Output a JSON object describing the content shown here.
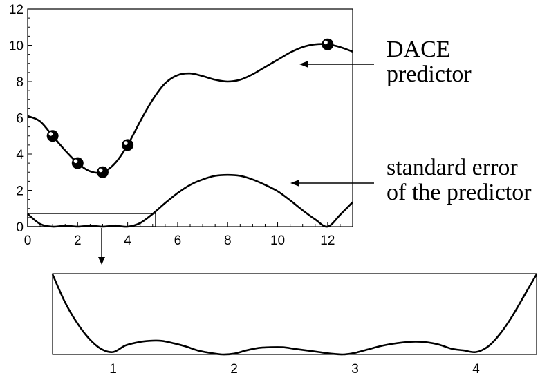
{
  "chart_data": [
    {
      "type": "line",
      "title": "",
      "xlabel": "",
      "ylabel": "",
      "xlim": [
        0,
        13
      ],
      "ylim": [
        0,
        12
      ],
      "xticks": [
        "0",
        "2",
        "4",
        "6",
        "8",
        "10",
        "12"
      ],
      "yticks": [
        "0",
        "2",
        "4",
        "6",
        "8",
        "10",
        "12"
      ],
      "grid": false,
      "series": [
        {
          "name": "DACE predictor",
          "x": [
            0,
            0.5,
            1,
            1.5,
            2,
            2.5,
            3,
            3.5,
            4,
            4.5,
            5,
            5.5,
            6,
            6.5,
            7,
            7.5,
            8,
            8.5,
            9,
            9.5,
            10,
            10.5,
            11,
            11.5,
            12,
            12.5,
            13
          ],
          "y": [
            6.1,
            5.8,
            5.0,
            4.2,
            3.5,
            3.05,
            3.0,
            3.5,
            4.5,
            5.8,
            7.0,
            7.9,
            8.35,
            8.45,
            8.3,
            8.1,
            8.0,
            8.1,
            8.4,
            8.8,
            9.2,
            9.6,
            9.9,
            10.05,
            10.05,
            9.9,
            9.65
          ]
        },
        {
          "name": "standard error of the predictor",
          "x": [
            0,
            0.5,
            1,
            1.5,
            2,
            2.5,
            3,
            3.5,
            4,
            4.5,
            5,
            5.5,
            6,
            6.5,
            7,
            7.5,
            8,
            8.5,
            9,
            9.5,
            10,
            10.5,
            11,
            11.5,
            12,
            12.5,
            13
          ],
          "y": [
            0.7,
            0.15,
            0.0,
            0.05,
            0.0,
            0.05,
            0.0,
            0.05,
            0.0,
            0.2,
            0.7,
            1.3,
            1.85,
            2.3,
            2.6,
            2.8,
            2.85,
            2.8,
            2.6,
            2.3,
            1.95,
            1.45,
            0.9,
            0.4,
            0.0,
            0.65,
            1.35
          ]
        }
      ],
      "markers": {
        "x": [
          1,
          2,
          3,
          4,
          12
        ],
        "y": [
          5.0,
          3.5,
          3.0,
          4.5,
          10.05
        ]
      },
      "annotations": [
        {
          "lines": [
            "DACE",
            "predictor"
          ]
        },
        {
          "lines": [
            "standard error",
            "of the predictor"
          ]
        }
      ]
    },
    {
      "type": "line",
      "title": "",
      "xlabel": "",
      "ylabel": "",
      "xlim": [
        0.5,
        4.5
      ],
      "xticks": [
        "1",
        "2",
        "3",
        "4"
      ],
      "grid": false,
      "series": [
        {
          "name": "",
          "x": [
            0.5,
            0.6,
            0.7,
            0.8,
            0.9,
            1.0,
            1.1,
            1.2,
            1.3,
            1.4,
            1.5,
            1.6,
            1.7,
            1.8,
            1.9,
            2.0,
            2.1,
            2.2,
            2.3,
            2.4,
            2.5,
            2.6,
            2.7,
            2.8,
            2.9,
            3.0,
            3.1,
            3.2,
            3.3,
            3.4,
            3.5,
            3.6,
            3.7,
            3.8,
            3.9,
            4.0,
            4.1,
            4.2,
            4.3,
            4.4,
            4.5
          ],
          "y": [
            1.0,
            0.66,
            0.4,
            0.2,
            0.07,
            0.03,
            0.11,
            0.15,
            0.17,
            0.17,
            0.14,
            0.1,
            0.05,
            0.02,
            0.0,
            0.01,
            0.05,
            0.08,
            0.09,
            0.09,
            0.07,
            0.05,
            0.03,
            0.01,
            0.0,
            0.02,
            0.06,
            0.1,
            0.13,
            0.15,
            0.16,
            0.15,
            0.12,
            0.07,
            0.05,
            0.03,
            0.1,
            0.26,
            0.48,
            0.74,
            1.0
          ]
        }
      ]
    }
  ]
}
